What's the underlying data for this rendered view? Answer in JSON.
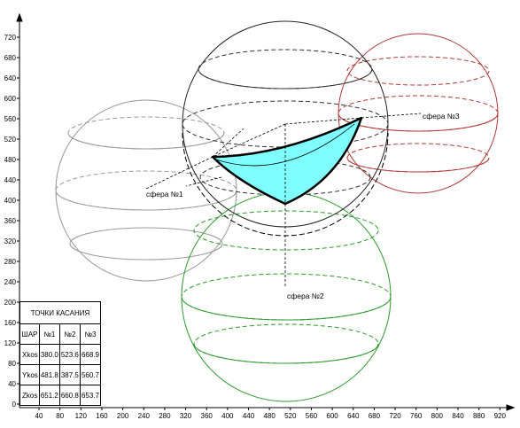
{
  "axes": {
    "y_ticks": [
      "0",
      "40",
      "80",
      "120",
      "160",
      "200",
      "240",
      "280",
      "320",
      "360",
      "400",
      "440",
      "480",
      "520",
      "560",
      "600",
      "640",
      "680",
      "720"
    ],
    "x_ticks": [
      "40",
      "80",
      "120",
      "160",
      "200",
      "240",
      "280",
      "320",
      "360",
      "400",
      "440",
      "480",
      "520",
      "560",
      "600",
      "640",
      "680",
      "720",
      "760",
      "800",
      "840",
      "880",
      "920"
    ]
  },
  "callouts": {
    "sphere1": "сфера №1",
    "sphere2": "сфера №2",
    "sphere3": "сфера №3"
  },
  "colors": {
    "sphere1": "#9a9a9a",
    "sphere2": "#2e9a2e",
    "sphere3": "#b03a3a",
    "central_sphere": "#000000",
    "region_fill": "#7fffff",
    "axis": "#000000"
  },
  "table": {
    "title": "ТОЧКИ КАСАНИЯ",
    "header": [
      "ШАР",
      "№1",
      "№2",
      "№3"
    ],
    "rows": [
      {
        "label": "Xkos",
        "values": [
          "380.0",
          "523.6",
          "668.9"
        ]
      },
      {
        "label": "Ykos",
        "values": [
          "481.8",
          "387.5",
          "560.7"
        ]
      },
      {
        "label": "Zkos",
        "values": [
          "651.2",
          "660.8",
          "653.7"
        ]
      }
    ]
  }
}
